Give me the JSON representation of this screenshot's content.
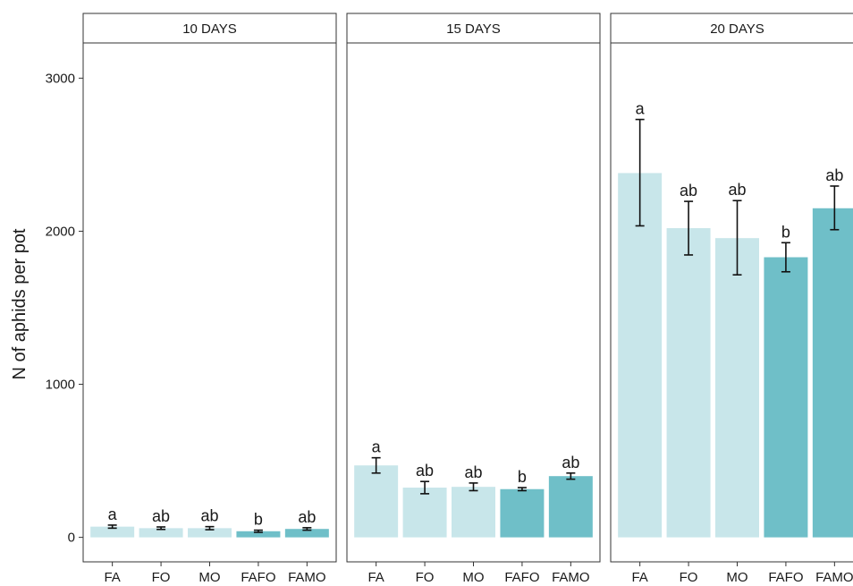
{
  "chart_data": {
    "type": "bar",
    "ylabel": "N of aphids per pot",
    "ylim": [
      -160,
      3230
    ],
    "yticks": [
      0,
      1000,
      2000,
      3000
    ],
    "grid": false,
    "categories": [
      "FA",
      "FO",
      "MO",
      "FAFO",
      "FAMO"
    ],
    "colors": {
      "FA": "#c8e6ea",
      "FO": "#c8e6ea",
      "MO": "#c8e6ea",
      "FAFO": "#6fbfc8",
      "FAMO": "#6fbfc8"
    },
    "panels": [
      {
        "title": "10 DAYS",
        "values": [
          70,
          60,
          60,
          40,
          55
        ],
        "err_low": [
          60,
          52,
          50,
          33,
          47
        ],
        "err_high": [
          80,
          68,
          70,
          47,
          63
        ],
        "letters": [
          "a",
          "ab",
          "ab",
          "b",
          "ab"
        ]
      },
      {
        "title": "15 DAYS",
        "values": [
          470,
          325,
          330,
          315,
          400
        ],
        "err_low": [
          420,
          285,
          305,
          305,
          380
        ],
        "err_high": [
          520,
          365,
          355,
          325,
          420
        ],
        "letters": [
          "a",
          "ab",
          "ab",
          "b",
          "ab"
        ]
      },
      {
        "title": "20 DAYS",
        "values": [
          2380,
          2020,
          1955,
          1830,
          2150
        ],
        "err_low": [
          2035,
          1845,
          1715,
          1735,
          2010
        ],
        "err_high": [
          2730,
          2195,
          2200,
          1925,
          2295
        ],
        "letters": [
          "a",
          "ab",
          "ab",
          "b",
          "ab"
        ]
      }
    ]
  }
}
